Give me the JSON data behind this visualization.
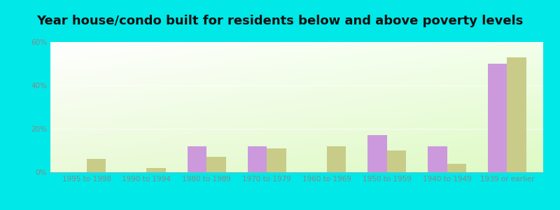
{
  "title": "Year house/condo built for residents below and above poverty levels",
  "categories": [
    "1995 to 1998",
    "1990 to 1994",
    "1980 to 1989",
    "1970 to 1979",
    "1960 to 1969",
    "1950 to 1959",
    "1940 to 1949",
    "1939 or earlier"
  ],
  "below_poverty": [
    0,
    0,
    12,
    12,
    0,
    17,
    12,
    50
  ],
  "above_poverty": [
    6,
    2,
    7,
    11,
    12,
    10,
    4,
    53
  ],
  "below_color": "#cc99dd",
  "above_color": "#c8cc88",
  "ylim": [
    0,
    60
  ],
  "yticks": [
    0,
    20,
    40,
    60
  ],
  "ytick_labels": [
    "0%",
    "20%",
    "40%",
    "60%"
  ],
  "outer_bg": "#00e8e8",
  "title_fontsize": 13,
  "tick_fontsize": 7.5,
  "legend_fontsize": 8.5,
  "tick_color": "#888888"
}
